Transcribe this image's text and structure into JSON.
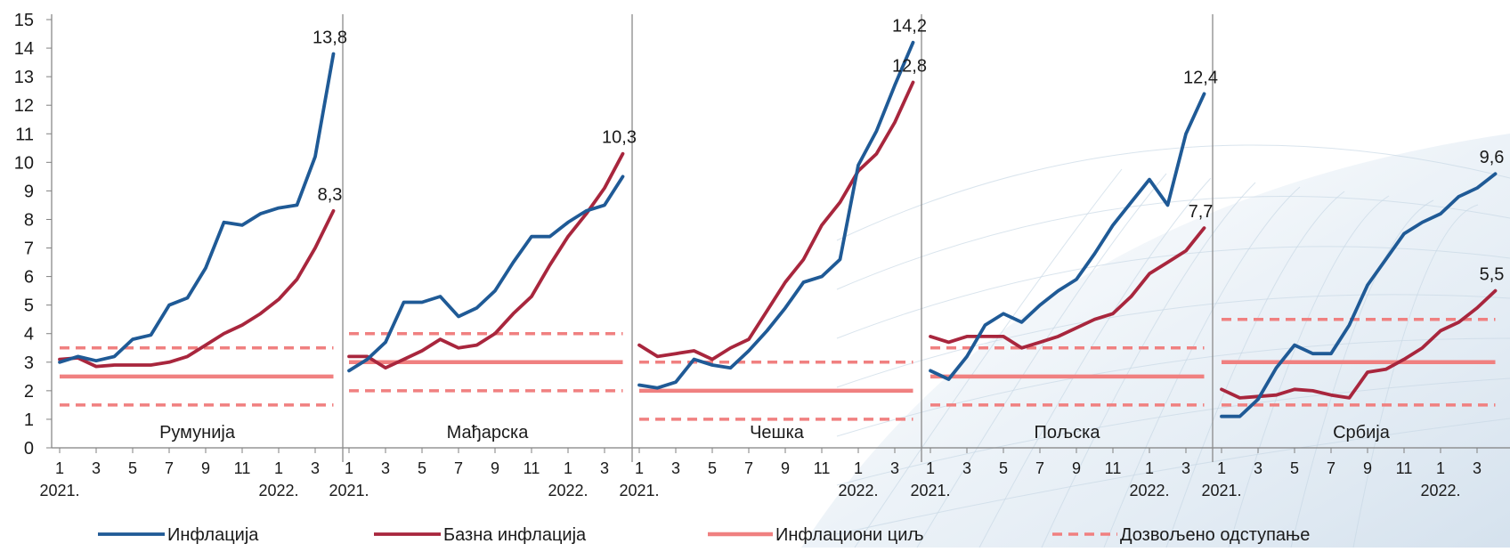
{
  "chart_data": {
    "type": "line",
    "ylim": [
      0,
      15
    ],
    "y_ticks": [
      0,
      1,
      2,
      3,
      4,
      5,
      6,
      7,
      8,
      9,
      10,
      11,
      12,
      13,
      14,
      15
    ],
    "x_tick_labels": [
      "1",
      "3",
      "5",
      "7",
      "9",
      "11",
      "1",
      "3"
    ],
    "year_labels": [
      "2021.",
      "2022."
    ],
    "grid": false,
    "legend_position": "bottom",
    "colors": {
      "inflation": "#1f5a96",
      "core": "#a8263d",
      "target": "#f08080",
      "tolerance": "#f08080"
    },
    "legend": [
      {
        "key": "inflation",
        "label": "Инфлација"
      },
      {
        "key": "core",
        "label": "Базна инфлација"
      },
      {
        "key": "target",
        "label": "Инфлациони циљ"
      },
      {
        "key": "tolerance",
        "label": "Дозвољено одступање"
      }
    ],
    "panels": [
      {
        "name": "Румунија",
        "inflation": [
          3.0,
          3.2,
          3.05,
          3.2,
          3.8,
          3.95,
          5.0,
          5.25,
          6.3,
          7.9,
          7.8,
          8.2,
          8.4,
          8.5,
          10.2,
          13.8
        ],
        "core": [
          3.1,
          3.15,
          2.85,
          2.9,
          2.9,
          2.9,
          3.0,
          3.2,
          3.6,
          4.0,
          4.3,
          4.7,
          5.2,
          5.9,
          7.0,
          8.3
        ],
        "target": 2.5,
        "band": [
          1.5,
          3.5
        ],
        "labels": [
          {
            "text": "13,8",
            "series": "inflation"
          },
          {
            "text": "8,3",
            "series": "core"
          }
        ]
      },
      {
        "name": "Мађарска",
        "inflation": [
          2.7,
          3.1,
          3.7,
          5.1,
          5.1,
          5.3,
          4.6,
          4.9,
          5.5,
          6.5,
          7.4,
          7.4,
          7.9,
          8.3,
          8.5,
          9.5
        ],
        "core": [
          3.2,
          3.2,
          2.8,
          3.1,
          3.4,
          3.8,
          3.5,
          3.6,
          4.0,
          4.7,
          5.3,
          6.4,
          7.4,
          8.2,
          9.1,
          10.3
        ],
        "target": 3.0,
        "band": [
          2.0,
          4.0
        ],
        "labels": [
          {
            "text": "10,3",
            "series": "core"
          }
        ]
      },
      {
        "name": "Чешка",
        "inflation": [
          2.2,
          2.1,
          2.3,
          3.1,
          2.9,
          2.8,
          3.4,
          4.1,
          4.9,
          5.8,
          6.0,
          6.6,
          9.9,
          11.1,
          12.7,
          14.2
        ],
        "core": [
          3.6,
          3.2,
          3.3,
          3.4,
          3.1,
          3.5,
          3.8,
          4.8,
          5.8,
          6.6,
          7.8,
          8.6,
          9.7,
          10.3,
          11.4,
          12.8
        ],
        "target": 2.0,
        "band": [
          1.0,
          3.0
        ],
        "labels": [
          {
            "text": "14,2",
            "series": "inflation"
          },
          {
            "text": "12,8",
            "series": "core"
          }
        ]
      },
      {
        "name": "Пољска",
        "inflation": [
          2.7,
          2.4,
          3.2,
          4.3,
          4.7,
          4.4,
          5.0,
          5.5,
          5.9,
          6.8,
          7.8,
          8.6,
          9.4,
          8.5,
          11.0,
          12.4
        ],
        "core": [
          3.9,
          3.7,
          3.9,
          3.9,
          3.9,
          3.5,
          3.7,
          3.9,
          4.2,
          4.5,
          4.7,
          5.3,
          6.1,
          6.5,
          6.9,
          7.7
        ],
        "target": 2.5,
        "band": [
          1.5,
          3.5
        ],
        "labels": [
          {
            "text": "12,4",
            "series": "inflation"
          },
          {
            "text": "7,7",
            "series": "core"
          }
        ]
      },
      {
        "name": "Србија",
        "inflation": [
          1.1,
          1.1,
          1.7,
          2.8,
          3.6,
          3.3,
          3.3,
          4.3,
          5.7,
          6.6,
          7.5,
          7.9,
          8.2,
          8.8,
          9.1,
          9.6
        ],
        "core": [
          2.05,
          1.75,
          1.8,
          1.85,
          2.05,
          2.0,
          1.85,
          1.75,
          2.65,
          2.75,
          3.1,
          3.5,
          4.1,
          4.4,
          4.9,
          5.5
        ],
        "target": 3.0,
        "band": [
          1.5,
          4.5
        ],
        "labels": [
          {
            "text": "9,6",
            "series": "inflation"
          },
          {
            "text": "5,5",
            "series": "core"
          }
        ]
      }
    ]
  }
}
